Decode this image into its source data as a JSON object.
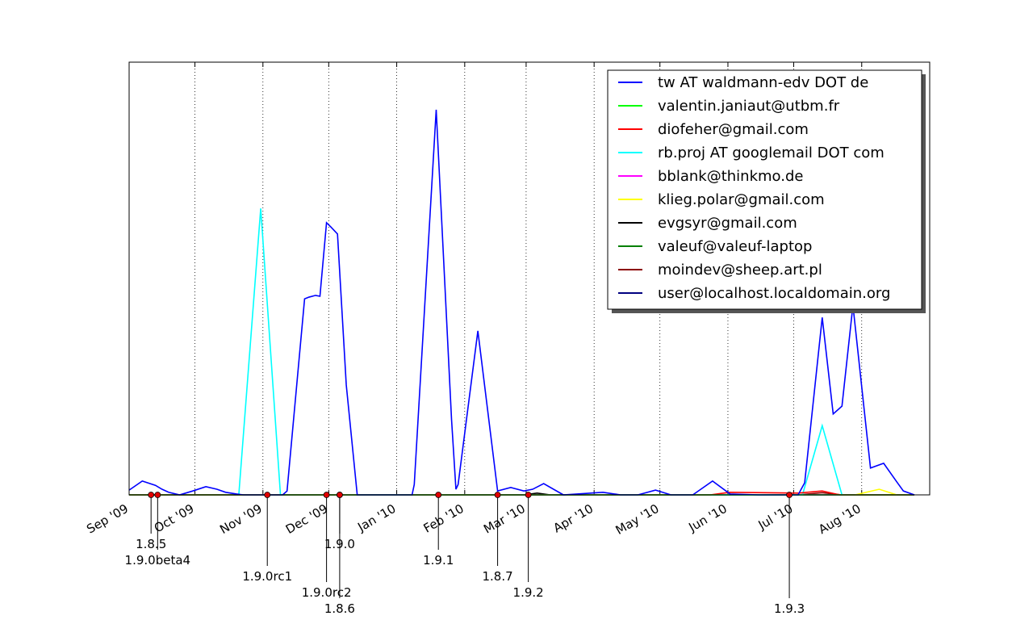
{
  "chart_data": {
    "type": "line",
    "xlim": [
      0,
      365
    ],
    "ylim": [
      0,
      100
    ],
    "xticks": [
      {
        "value": 0,
        "label": "Sep '09"
      },
      {
        "value": 30,
        "label": "Oct '09"
      },
      {
        "value": 61,
        "label": "Nov '09"
      },
      {
        "value": 91,
        "label": "Dec '09"
      },
      {
        "value": 122,
        "label": "Jan '10"
      },
      {
        "value": 153,
        "label": "Feb '10"
      },
      {
        "value": 181,
        "label": "Mar '10"
      },
      {
        "value": 212,
        "label": "Apr '10"
      },
      {
        "value": 242,
        "label": "May '10"
      },
      {
        "value": 273,
        "label": "Jun '10"
      },
      {
        "value": 303,
        "label": "Jul '10"
      },
      {
        "value": 334,
        "label": "Aug '10"
      }
    ],
    "grid": "x",
    "legend": "upper right",
    "series": [
      {
        "name": "tw AT waldmann-edv DOT de",
        "color": "#0000ff",
        "x": [
          0,
          6,
          12,
          15,
          18,
          23,
          29,
          35,
          40,
          44,
          49,
          52,
          70,
          72,
          80,
          82,
          85,
          87,
          90,
          92,
          95,
          99,
          104,
          129,
          130,
          140,
          147,
          149,
          150,
          159,
          168,
          174,
          180,
          184,
          189,
          198,
          216,
          224,
          232,
          240,
          247,
          257,
          266,
          274,
          287,
          305,
          308,
          316,
          321,
          325,
          330,
          338,
          344,
          350,
          353,
          358
        ],
        "values": [
          1.1,
          3.2,
          2.2,
          1.3,
          0.6,
          0,
          0.9,
          1.9,
          1.3,
          0.6,
          0.2,
          0,
          0,
          0.9,
          45.3,
          45.7,
          46.1,
          45.9,
          62.9,
          61.9,
          60.3,
          25.4,
          0,
          0,
          2.4,
          89.0,
          17.4,
          1.3,
          2.4,
          37.9,
          0.9,
          1.7,
          0.9,
          1.3,
          2.6,
          0,
          0.6,
          0,
          0,
          1.1,
          0,
          0,
          3.2,
          0.2,
          0,
          0,
          2.8,
          41.0,
          18.7,
          20.5,
          43.8,
          6.2,
          7.3,
          3.0,
          0.9,
          0
        ]
      },
      {
        "name": "valentin.janiaut@utbm.fr",
        "color": "#00ff00",
        "x": [
          0,
          358
        ],
        "values": [
          0,
          0
        ]
      },
      {
        "name": "diofeher@gmail.com",
        "color": "#ff0000",
        "x": [
          0,
          265,
          274,
          305,
          316,
          324,
          358
        ],
        "values": [
          0,
          0,
          0.6,
          0.4,
          0.9,
          0,
          0
        ]
      },
      {
        "name": "rb.proj AT googlemail DOT com",
        "color": "#00ffff",
        "x": [
          50,
          60,
          69,
          120,
          130,
          307,
          316,
          325
        ],
        "values": [
          0,
          66.2,
          0,
          0,
          0,
          0,
          16.0,
          0
        ]
      },
      {
        "name": "bblank@thinkmo.de",
        "color": "#ff00ff",
        "x": [
          0,
          358
        ],
        "values": [
          0,
          0
        ]
      },
      {
        "name": "klieg.polar@gmail.com",
        "color": "#ffff00",
        "x": [
          331,
          342,
          350
        ],
        "values": [
          0,
          1.3,
          0
        ]
      },
      {
        "name": "evgsyr@gmail.com",
        "color": "#000000",
        "x": [
          180,
          186,
          192
        ],
        "values": [
          0,
          0.4,
          0
        ]
      },
      {
        "name": "valeuf@valeuf-laptop",
        "color": "#008000",
        "x": [
          0,
          358
        ],
        "values": [
          0,
          0
        ]
      },
      {
        "name": "moindev@sheep.art.pl",
        "color": "#8b0000",
        "x": [
          305,
          316,
          325
        ],
        "values": [
          0,
          0.5,
          0
        ]
      },
      {
        "name": "user@localhost.localdomain.org",
        "color": "#000080",
        "x": [
          0,
          358
        ],
        "values": [
          0,
          0
        ]
      }
    ],
    "releases": [
      {
        "label": "1.8.5",
        "x": 10
      },
      {
        "label": "1.9.0beta4",
        "x": 13
      },
      {
        "label": "1.9.0rc1",
        "x": 63
      },
      {
        "label": "1.9.0rc2",
        "x": 90
      },
      {
        "label": "1.8.6",
        "x": 96
      },
      {
        "label": "1.9.0",
        "x": 96
      },
      {
        "label": "1.9.1",
        "x": 141
      },
      {
        "label": "1.8.7",
        "x": 168
      },
      {
        "label": "1.9.2",
        "x": 182
      },
      {
        "label": "1.9.3",
        "x": 301
      }
    ]
  }
}
